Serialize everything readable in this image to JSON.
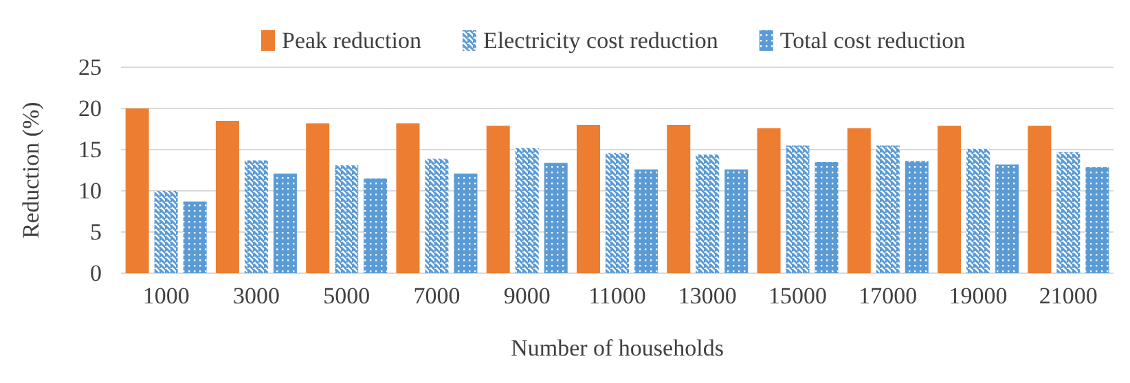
{
  "chart_data": {
    "type": "bar",
    "xlabel": "Number of households",
    "ylabel": "Reduction (%)",
    "categories": [
      "1000",
      "3000",
      "5000",
      "7000",
      "9000",
      "11000",
      "13000",
      "15000",
      "17000",
      "19000",
      "21000"
    ],
    "series": [
      {
        "name": "Peak reduction",
        "color": "#ed7d31",
        "values": [
          20,
          18.5,
          18.2,
          18.2,
          17.9,
          18.0,
          18.0,
          17.6,
          17.6,
          17.9,
          17.9
        ]
      },
      {
        "name": "Electricity cost reduction",
        "color": "#5b9bd5",
        "values": [
          10,
          13.7,
          13.1,
          13.9,
          15.2,
          14.6,
          14.4,
          15.5,
          15.5,
          15.1,
          14.7
        ]
      },
      {
        "name": "Total cost reduction",
        "color": "#5b9bd5",
        "values": [
          8.7,
          12.1,
          11.5,
          12.1,
          13.4,
          12.6,
          12.6,
          13.5,
          13.6,
          13.2,
          12.9
        ]
      }
    ],
    "ylim": [
      0,
      25
    ],
    "yticks": [
      0,
      5,
      10,
      15,
      20,
      25
    ],
    "grid": "y",
    "legend": "top"
  }
}
